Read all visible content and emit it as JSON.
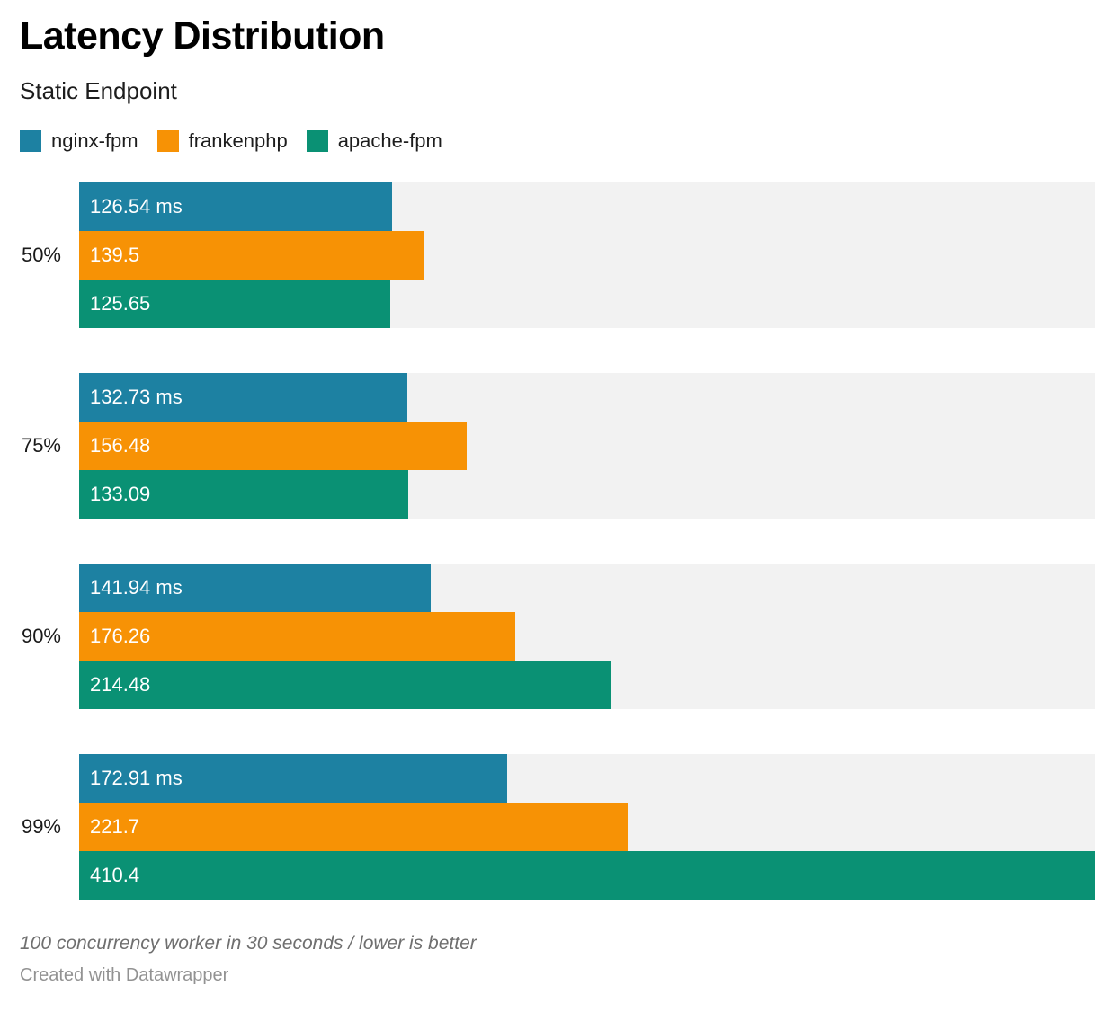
{
  "chart_data": {
    "type": "bar",
    "orientation": "horizontal",
    "title": "Latency Distribution",
    "subtitle": "Static Endpoint",
    "unit": "ms",
    "xmax": 410.4,
    "track_color": "#f2f2f2",
    "categories": [
      "50%",
      "75%",
      "90%",
      "99%"
    ],
    "series": [
      {
        "name": "nginx-fpm",
        "color": "#1d81a2",
        "values": [
          126.54,
          132.73,
          141.94,
          172.91
        ]
      },
      {
        "name": "frankenphp",
        "color": "#f79205",
        "values": [
          139.5,
          156.48,
          176.26,
          221.7
        ]
      },
      {
        "name": "apache-fpm",
        "color": "#0a9174",
        "values": [
          125.65,
          133.09,
          214.48,
          410.4
        ]
      }
    ],
    "groups": [
      {
        "label": "50%",
        "bars": [
          {
            "series": "nginx-fpm",
            "value": 126.54,
            "text": "126.54 ms"
          },
          {
            "series": "frankenphp",
            "value": 139.5,
            "text": "139.5"
          },
          {
            "series": "apache-fpm",
            "value": 125.65,
            "text": "125.65"
          }
        ]
      },
      {
        "label": "75%",
        "bars": [
          {
            "series": "nginx-fpm",
            "value": 132.73,
            "text": "132.73 ms"
          },
          {
            "series": "frankenphp",
            "value": 156.48,
            "text": "156.48"
          },
          {
            "series": "apache-fpm",
            "value": 133.09,
            "text": "133.09"
          }
        ]
      },
      {
        "label": "90%",
        "bars": [
          {
            "series": "nginx-fpm",
            "value": 141.94,
            "text": "141.94 ms"
          },
          {
            "series": "frankenphp",
            "value": 176.26,
            "text": "176.26"
          },
          {
            "series": "apache-fpm",
            "value": 214.48,
            "text": "214.48"
          }
        ]
      },
      {
        "label": "99%",
        "bars": [
          {
            "series": "nginx-fpm",
            "value": 172.91,
            "text": "172.91 ms"
          },
          {
            "series": "frankenphp",
            "value": 221.7,
            "text": "221.7"
          },
          {
            "series": "apache-fpm",
            "value": 410.4,
            "text": "410.4"
          }
        ]
      }
    ],
    "notes": "100 concurrency worker in 30 seconds / lower is better",
    "credit": "Created with Datawrapper"
  }
}
